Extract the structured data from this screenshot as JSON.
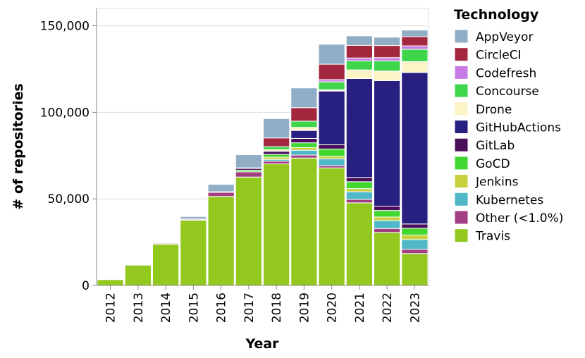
{
  "chart_data": {
    "type": "bar",
    "stacked": true,
    "xlabel": "Year",
    "ylabel": "# of repositories",
    "ylim": [
      0,
      160000
    ],
    "yticks": [
      0,
      50000,
      100000,
      150000
    ],
    "ytick_labels": [
      "0",
      "50,000",
      "100,000",
      "150,000"
    ],
    "grid": "horizontal",
    "legend_title": "Technology",
    "legend_position": "right",
    "categories": [
      "2012",
      "2013",
      "2014",
      "2015",
      "2016",
      "2017",
      "2018",
      "2019",
      "2020",
      "2021",
      "2022",
      "2023"
    ],
    "series": [
      {
        "name": "Travis",
        "color": "#93c81e",
        "values": [
          3300,
          11700,
          23800,
          37700,
          51400,
          62600,
          70200,
          73600,
          67900,
          47700,
          30600,
          18400
        ]
      },
      {
        "name": "Other (<1.0%)",
        "color": "#a23f82",
        "values": [
          0,
          0,
          500,
          500,
          2400,
          3000,
          1600,
          1700,
          1300,
          2000,
          2300,
          2500
        ]
      },
      {
        "name": "Kubernetes",
        "color": "#4eb8c8",
        "values": [
          0,
          0,
          0,
          0,
          0,
          0,
          1000,
          2800,
          4000,
          4400,
          4600,
          5600
        ]
      },
      {
        "name": "Jenkins",
        "color": "#c7d13d",
        "values": [
          0,
          0,
          0,
          0,
          0,
          0,
          1300,
          1500,
          1400,
          1800,
          2000,
          2600
        ]
      },
      {
        "name": "GoCD",
        "color": "#41d731",
        "values": [
          0,
          0,
          0,
          0,
          0,
          1000,
          1600,
          2800,
          4200,
          4000,
          3800,
          3900
        ]
      },
      {
        "name": "GitLab",
        "color": "#4a0f5a",
        "values": [
          0,
          0,
          0,
          0,
          0,
          1000,
          1800,
          2500,
          2500,
          2500,
          2500,
          2500
        ]
      },
      {
        "name": "GitHubActions",
        "color": "#282080",
        "values": [
          0,
          0,
          0,
          0,
          0,
          0,
          0,
          4600,
          31000,
          57100,
          72500,
          87500
        ]
      },
      {
        "name": "Drone",
        "color": "#fcf3c6",
        "values": [
          0,
          0,
          0,
          0,
          0,
          0,
          900,
          1800,
          700,
          5000,
          5500,
          6300
        ]
      },
      {
        "name": "Concourse",
        "color": "#3fd64b",
        "values": [
          0,
          0,
          0,
          0,
          0,
          0,
          1800,
          3600,
          4600,
          5200,
          5900,
          7100
        ]
      },
      {
        "name": "Codefresh",
        "color": "#c77ce4",
        "values": [
          0,
          0,
          0,
          0,
          0,
          0,
          0,
          0,
          1300,
          1700,
          1900,
          2000
        ]
      },
      {
        "name": "CircleCI",
        "color": "#a3283f",
        "values": [
          0,
          0,
          0,
          200,
          300,
          300,
          5000,
          7800,
          8900,
          7300,
          7000,
          5300
        ]
      },
      {
        "name": "AppVeyor",
        "color": "#90aec5",
        "values": [
          0,
          0,
          0,
          1400,
          4300,
          7600,
          11200,
          11400,
          11500,
          5500,
          4800,
          3800
        ]
      }
    ],
    "legend_order": [
      "AppVeyor",
      "CircleCI",
      "Codefresh",
      "Concourse",
      "Drone",
      "GitHubActions",
      "GitLab",
      "GoCD",
      "Jenkins",
      "Kubernetes",
      "Other (<1.0%)",
      "Travis"
    ]
  }
}
